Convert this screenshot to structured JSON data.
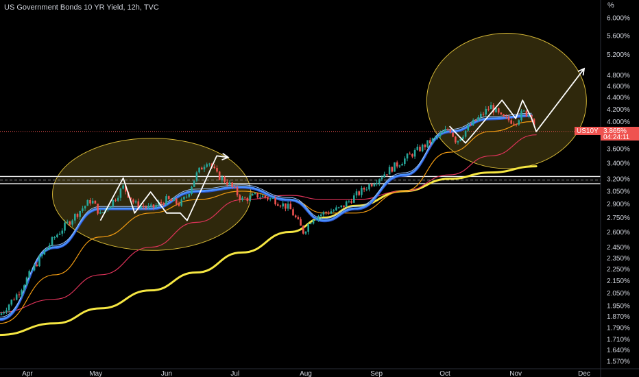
{
  "header": {
    "title": "US Government Bonds 10 YR Yield, 12h, TVC",
    "unit": "%"
  },
  "price_tag": {
    "symbol": "US10Y",
    "value": "3.865%",
    "countdown": "04:24:11"
  },
  "colors": {
    "background": "#000000",
    "up": "#26a69a",
    "down": "#ef5350",
    "ma_fast": "#4a90ff",
    "ma_slow": "#f39c12",
    "ma_mid": "#e0335a",
    "ma_long": "#f5e642",
    "annotation": "#ffffff",
    "ellipse_stroke": "#d4b636",
    "ellipse_fill": "rgba(212,182,54,0.22)"
  },
  "chart_data": {
    "type": "line",
    "scale": "log",
    "title": "US Government Bonds 10 YR Yield, 12h, TVC",
    "ylabel": "%",
    "ylim": [
      1.53,
      6.3
    ],
    "grid": false,
    "y_ticks": [
      "6.000%",
      "5.600%",
      "5.200%",
      "4.800%",
      "4.600%",
      "4.400%",
      "4.200%",
      "4.000%",
      "3.800%",
      "3.600%",
      "3.400%",
      "3.200%",
      "3.050%",
      "2.900%",
      "2.750%",
      "2.600%",
      "2.450%",
      "2.350%",
      "2.250%",
      "2.150%",
      "2.050%",
      "1.950%",
      "1.870%",
      "1.790%",
      "1.710%",
      "1.640%",
      "1.570%"
    ],
    "x_ticks": [
      "Apr",
      "May",
      "Jun",
      "Jul",
      "Aug",
      "Sep",
      "Oct",
      "Nov",
      "Dec"
    ],
    "series": [
      {
        "role": "price",
        "x": [
          "Mar 20",
          "Mar 28",
          "Apr 5",
          "Apr 13",
          "Apr 21",
          "Apr 29",
          "May 3",
          "May 9",
          "May 13",
          "May 18",
          "May 25",
          "Jun 1",
          "Jun 7",
          "Jun 10",
          "Jun 14",
          "Jun 19",
          "Jun 23",
          "Jun 28",
          "Jul 4",
          "Jul 11",
          "Jul 18",
          "Jul 25",
          "Jul 31",
          "Aug 4",
          "Aug 9",
          "Aug 16",
          "Aug 23",
          "Aug 30",
          "Sep 6",
          "Sep 13",
          "Sep 20",
          "Sep 27",
          "Oct 3",
          "Oct 6",
          "Oct 11",
          "Oct 17",
          "Oct 21",
          "Oct 26",
          "Nov 1",
          "Nov 4",
          "Nov 8",
          "Nov 10"
        ],
        "y": [
          1.88,
          2.05,
          2.3,
          2.55,
          2.75,
          2.95,
          2.78,
          2.95,
          3.1,
          2.9,
          2.85,
          2.95,
          2.9,
          3.0,
          3.25,
          3.45,
          3.25,
          3.15,
          2.95,
          3.0,
          2.95,
          2.85,
          2.6,
          2.75,
          2.8,
          2.85,
          3.0,
          3.15,
          3.3,
          3.45,
          3.6,
          3.75,
          3.9,
          3.7,
          3.9,
          4.1,
          4.25,
          4.05,
          4.0,
          4.15,
          4.1,
          3.85
        ]
      },
      {
        "role": "ma_fast",
        "x": [
          "Mar 20",
          "Apr 13",
          "May 3",
          "May 25",
          "Jun 14",
          "Jul 4",
          "Jul 25",
          "Aug 9",
          "Aug 23",
          "Sep 13",
          "Oct 3",
          "Oct 21",
          "Nov 8"
        ],
        "y": [
          1.85,
          2.45,
          2.85,
          2.85,
          3.05,
          3.1,
          2.95,
          2.72,
          2.85,
          3.25,
          3.85,
          4.05,
          4.1
        ]
      },
      {
        "role": "ma_slow",
        "x": [
          "Mar 20",
          "Apr 13",
          "May 3",
          "May 25",
          "Jun 14",
          "Jul 4",
          "Jul 25",
          "Aug 9",
          "Aug 23",
          "Sep 13",
          "Oct 3",
          "Oct 21",
          "Nov 8"
        ],
        "y": [
          1.82,
          2.2,
          2.55,
          2.8,
          2.95,
          3.05,
          2.95,
          2.8,
          2.8,
          3.05,
          3.55,
          3.85,
          4.0
        ]
      },
      {
        "role": "ma_mid",
        "x": [
          "Mar 20",
          "Apr 13",
          "May 3",
          "May 25",
          "Jun 14",
          "Jul 4",
          "Jul 25",
          "Aug 9",
          "Aug 23",
          "Sep 13",
          "Oct 3",
          "Oct 21",
          "Nov 10"
        ],
        "y": [
          1.9,
          2.0,
          2.2,
          2.45,
          2.7,
          2.95,
          3.0,
          2.95,
          2.95,
          3.05,
          3.25,
          3.5,
          3.8
        ]
      },
      {
        "role": "ma_long",
        "x": [
          "Mar 20",
          "Apr 13",
          "May 3",
          "May 25",
          "Jun 14",
          "Jul 4",
          "Jul 25",
          "Aug 9",
          "Aug 23",
          "Sep 13",
          "Oct 3",
          "Oct 21",
          "Nov 10"
        ],
        "y": [
          1.74,
          1.82,
          1.93,
          2.07,
          2.22,
          2.4,
          2.6,
          2.75,
          2.88,
          3.05,
          3.2,
          3.28,
          3.36
        ]
      }
    ],
    "annotations": [
      {
        "type": "ellipse",
        "x_range": [
          "Apr 12",
          "Jul 8"
        ],
        "y_range": [
          2.42,
          3.75
        ]
      },
      {
        "type": "ellipse",
        "x_range": [
          "Sep 23",
          "Dec 2"
        ],
        "y_range": [
          3.33,
          5.65
        ]
      },
      {
        "type": "horizontal_band",
        "y_values": [
          3.14,
          3.23
        ]
      },
      {
        "type": "polyline",
        "points": [
          [
            "May 3",
            2.72
          ],
          [
            "May 13",
            3.21
          ],
          [
            "May 18",
            2.8
          ],
          [
            "May 25",
            3.04
          ],
          [
            "Jun 1",
            2.8
          ],
          [
            "Jun 7",
            2.8
          ],
          [
            "Jun 10",
            2.72
          ],
          [
            "Jun 23",
            3.5
          ],
          [
            "Jun 28",
            3.48
          ]
        ]
      },
      {
        "type": "polyline",
        "points": [
          [
            "Oct 3",
            3.93
          ],
          [
            "Oct 10",
            3.68
          ],
          [
            "Oct 26",
            4.35
          ],
          [
            "Nov 1",
            4.05
          ],
          [
            "Nov 4",
            4.35
          ],
          [
            "Nov 8",
            4.05
          ],
          [
            "Nov 10",
            3.85
          ],
          [
            "Dec 1",
            4.92
          ]
        ]
      }
    ]
  }
}
